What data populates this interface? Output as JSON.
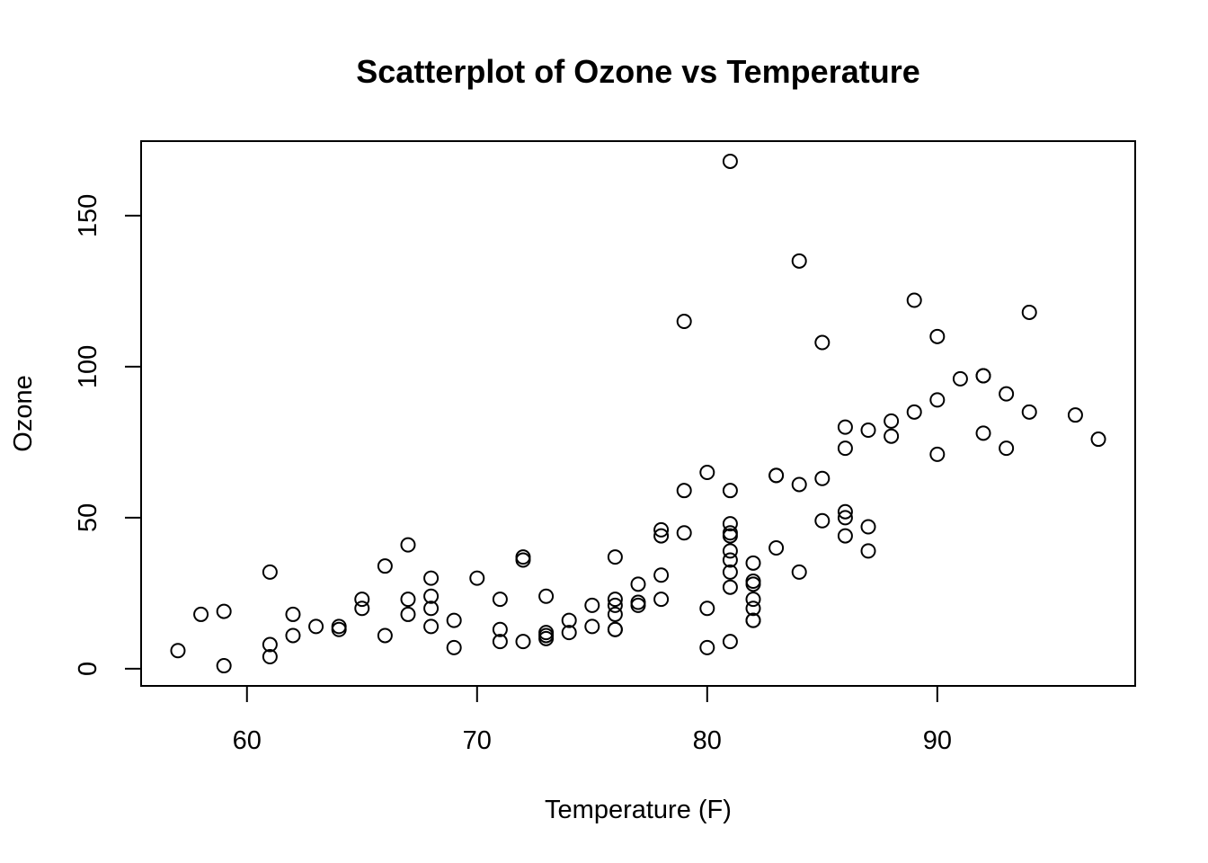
{
  "chart_data": {
    "type": "scatter",
    "title": "Scatterplot of Ozone vs Temperature",
    "xlabel": "Temperature (F)",
    "ylabel": "Ozone",
    "xlim": [
      55.4,
      98.6
    ],
    "ylim": [
      -5.68,
      174.68
    ],
    "x_ticks": [
      60,
      70,
      80,
      90
    ],
    "y_ticks": [
      0,
      50,
      100,
      150
    ],
    "grid": false,
    "legend": "none",
    "point_style": "open-circle",
    "points": [
      [
        57,
        6
      ],
      [
        58,
        18
      ],
      [
        59,
        19
      ],
      [
        59,
        1
      ],
      [
        61,
        32
      ],
      [
        61,
        8
      ],
      [
        61,
        4
      ],
      [
        62,
        18
      ],
      [
        62,
        11
      ],
      [
        63,
        14
      ],
      [
        64,
        14
      ],
      [
        64,
        13
      ],
      [
        65,
        23
      ],
      [
        65,
        20
      ],
      [
        66,
        34
      ],
      [
        66,
        11
      ],
      [
        67,
        41
      ],
      [
        67,
        23
      ],
      [
        67,
        18
      ],
      [
        68,
        30
      ],
      [
        68,
        24
      ],
      [
        68,
        20
      ],
      [
        68,
        14
      ],
      [
        69,
        16
      ],
      [
        69,
        7
      ],
      [
        70,
        30
      ],
      [
        71,
        23
      ],
      [
        71,
        13
      ],
      [
        71,
        9
      ],
      [
        72,
        37
      ],
      [
        72,
        36
      ],
      [
        72,
        9
      ],
      [
        73,
        24
      ],
      [
        73,
        12
      ],
      [
        73,
        11
      ],
      [
        73,
        10
      ],
      [
        74,
        16
      ],
      [
        74,
        12
      ],
      [
        75,
        21
      ],
      [
        75,
        14
      ],
      [
        76,
        37
      ],
      [
        76,
        23
      ],
      [
        76,
        21
      ],
      [
        76,
        18
      ],
      [
        76,
        13
      ],
      [
        76,
        13
      ],
      [
        77,
        28
      ],
      [
        77,
        22
      ],
      [
        77,
        21
      ],
      [
        78,
        46
      ],
      [
        78,
        44
      ],
      [
        78,
        31
      ],
      [
        78,
        23
      ],
      [
        79,
        115
      ],
      [
        79,
        59
      ],
      [
        79,
        45
      ],
      [
        80,
        65
      ],
      [
        80,
        20
      ],
      [
        80,
        7
      ],
      [
        81,
        168
      ],
      [
        81,
        59
      ],
      [
        81,
        48
      ],
      [
        81,
        45
      ],
      [
        81,
        44
      ],
      [
        81,
        39
      ],
      [
        81,
        36
      ],
      [
        81,
        32
      ],
      [
        81,
        27
      ],
      [
        81,
        9
      ],
      [
        82,
        35
      ],
      [
        82,
        29
      ],
      [
        82,
        28
      ],
      [
        82,
        23
      ],
      [
        82,
        20
      ],
      [
        82,
        16
      ],
      [
        82,
        16
      ],
      [
        83,
        64
      ],
      [
        83,
        64
      ],
      [
        83,
        40
      ],
      [
        84,
        135
      ],
      [
        84,
        61
      ],
      [
        84,
        32
      ],
      [
        85,
        108
      ],
      [
        85,
        63
      ],
      [
        85,
        49
      ],
      [
        86,
        80
      ],
      [
        86,
        73
      ],
      [
        86,
        52
      ],
      [
        86,
        50
      ],
      [
        86,
        44
      ],
      [
        87,
        79
      ],
      [
        87,
        47
      ],
      [
        87,
        39
      ],
      [
        88,
        82
      ],
      [
        88,
        77
      ],
      [
        89,
        122
      ],
      [
        89,
        85
      ],
      [
        90,
        110
      ],
      [
        90,
        89
      ],
      [
        90,
        71
      ],
      [
        91,
        96
      ],
      [
        92,
        97
      ],
      [
        92,
        97
      ],
      [
        92,
        78
      ],
      [
        93,
        91
      ],
      [
        93,
        73
      ],
      [
        94,
        118
      ],
      [
        94,
        85
      ],
      [
        96,
        84
      ],
      [
        97,
        76
      ]
    ]
  }
}
